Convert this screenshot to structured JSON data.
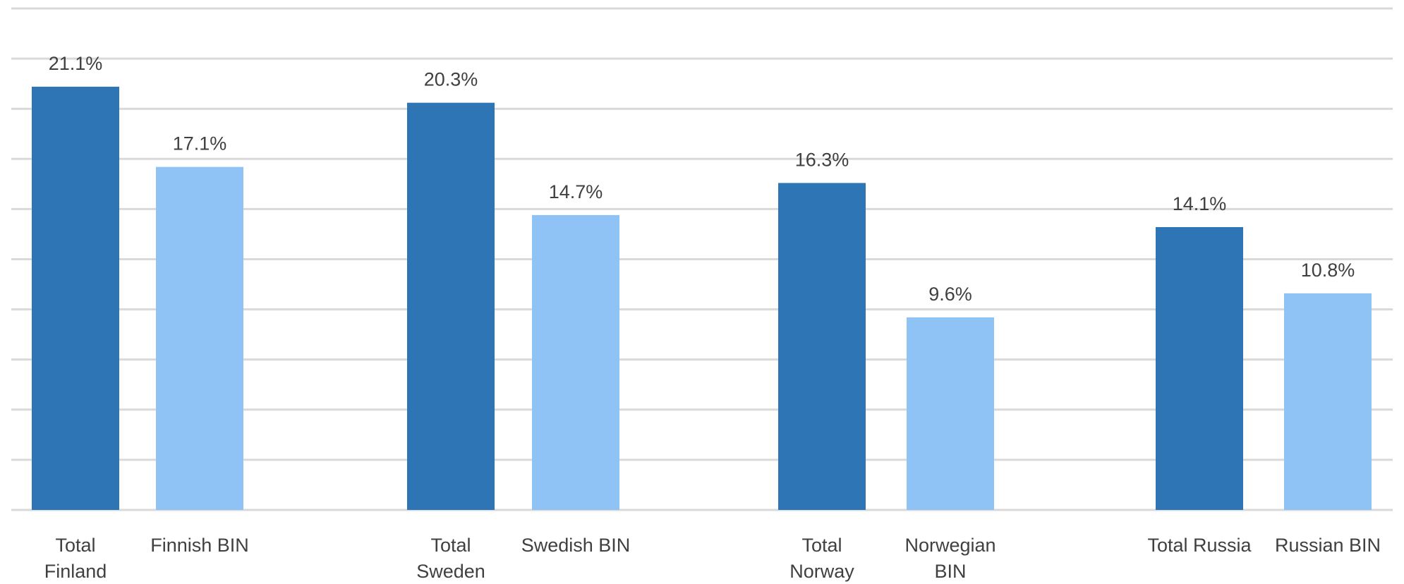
{
  "chart_data": {
    "type": "bar",
    "categories": [
      "Total Finland",
      "Finnish BIN",
      "Total Sweden",
      "Swedish BIN",
      "Total Norway",
      "Norwegian BIN",
      "Total Russia",
      "Russian BIN"
    ],
    "category_label_lines": [
      [
        "Total",
        "Finland"
      ],
      [
        "Finnish BIN"
      ],
      [
        "Total",
        "Sweden"
      ],
      [
        "Swedish BIN"
      ],
      [
        "Total",
        "Norway"
      ],
      [
        "Norwegian",
        "BIN"
      ],
      [
        "Total Russia"
      ],
      [
        "Russian BIN"
      ]
    ],
    "values": [
      21.1,
      17.1,
      20.3,
      14.7,
      16.3,
      9.6,
      14.1,
      10.8
    ],
    "data_labels": [
      "21.1%",
      "17.1%",
      "20.3%",
      "14.7%",
      "16.3%",
      "9.6%",
      "14.1%",
      "10.8%"
    ],
    "bar_colors": [
      "#2e75b6",
      "#8fc3f5",
      "#2e75b6",
      "#8fc3f5",
      "#2e75b6",
      "#8fc3f5",
      "#2e75b6",
      "#8fc3f5"
    ],
    "gridlines": [
      0,
      2.5,
      5,
      7.5,
      10,
      12.5,
      15,
      17.5,
      20,
      22.5,
      25
    ],
    "ylim": [
      0,
      25
    ],
    "grid": true,
    "title": "",
    "xlabel": "",
    "ylabel": ""
  }
}
